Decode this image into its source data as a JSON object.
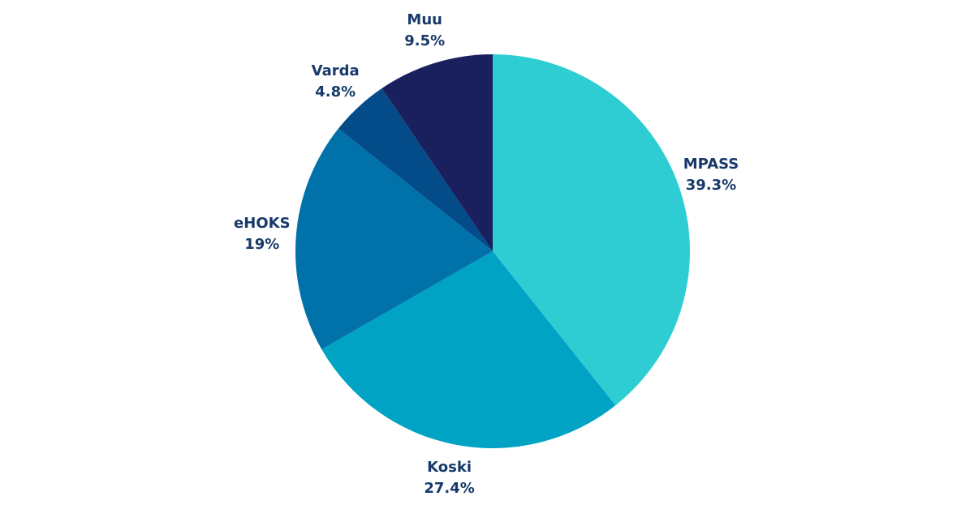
{
  "chart_data": {
    "type": "pie",
    "slices": [
      {
        "label": "MPASS",
        "value_text": "39.3%",
        "value": 39.3,
        "color": "#2ecdd3"
      },
      {
        "label": "Koski",
        "value_text": "27.4%",
        "value": 27.4,
        "color": "#00a3c4"
      },
      {
        "label": "eHOKS",
        "value_text": "19%",
        "value": 19.0,
        "color": "#0072a9"
      },
      {
        "label": "Varda",
        "value_text": "4.8%",
        "value": 4.8,
        "color": "#034c89"
      },
      {
        "label": "Muu",
        "value_text": "9.5%",
        "value": 9.5,
        "color": "#1a205d"
      }
    ],
    "start_angle": "12 o'clock",
    "direction": "clockwise",
    "legend": "none",
    "label_color": "#173a6a"
  }
}
